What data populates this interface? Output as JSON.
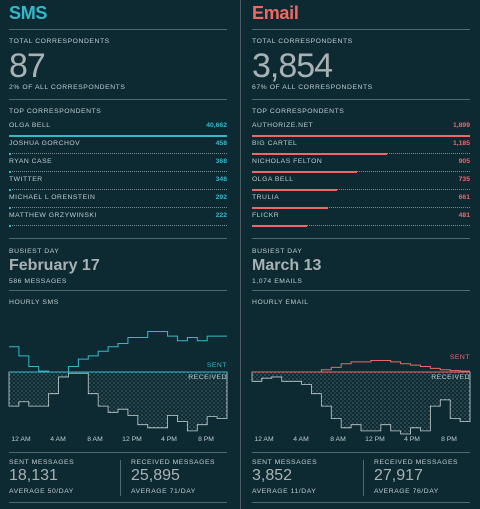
{
  "colors": {
    "background": "#0d2a33",
    "sms_accent": "#33b9cc",
    "email_accent": "#ef6863",
    "muted_text": "#a9b1b3"
  },
  "sms": {
    "title": "SMS",
    "total_label": "TOTAL CORRESPONDENTS",
    "total_value": "87",
    "total_pct": "2% OF ALL CORRESPONDENTS",
    "top_label": "TOP CORRESPONDENTS",
    "top": [
      {
        "name": "OLGA BELL",
        "value": "40,662",
        "share": 1.0
      },
      {
        "name": "JOSHUA GORCHOV",
        "value": "458",
        "share": 0.011
      },
      {
        "name": "RYAN CASE",
        "value": "368",
        "share": 0.009
      },
      {
        "name": "TWITTER",
        "value": "348",
        "share": 0.008
      },
      {
        "name": "MICHAEL L ORENSTEIN",
        "value": "292",
        "share": 0.007
      },
      {
        "name": "MATTHEW GRZYWINSKI",
        "value": "222",
        "share": 0.005
      }
    ],
    "busiest_label": "BUSIEST DAY",
    "busiest_date": "February 17",
    "busiest_count": "586 MESSAGES",
    "hourly_label": "HOURLY SMS",
    "sent_tag": "SENT",
    "received_tag": "RECEIVED",
    "x_ticks": [
      "12 AM",
      "4 AM",
      "8 AM",
      "12 PM",
      "4 PM",
      "8 PM"
    ],
    "sent_messages_label": "SENT MESSAGES",
    "sent_messages_value": "18,131",
    "sent_average": "AVERAGE 50/DAY",
    "received_messages_label": "RECEIVED MESSAGES",
    "received_messages_value": "25,895",
    "received_average": "AVERAGE 71/DAY",
    "sent_hourly": [
      0.55,
      0.35,
      0.12,
      0.02,
      0.0,
      0.0,
      0.12,
      0.28,
      0.35,
      0.45,
      0.55,
      0.62,
      0.75,
      0.75,
      0.88,
      0.88,
      0.78,
      0.68,
      0.75,
      0.68,
      0.78,
      0.78
    ],
    "received_hourly": [
      0.55,
      0.48,
      0.55,
      0.55,
      0.35,
      0.08,
      0.02,
      0.02,
      0.35,
      0.55,
      0.65,
      0.6,
      0.7,
      0.85,
      0.9,
      0.9,
      0.7,
      0.8,
      0.95,
      0.85,
      0.72,
      0.75
    ]
  },
  "email": {
    "title": "Email",
    "total_label": "TOTAL CORRESPONDENTS",
    "total_value": "3,854",
    "total_pct": "67% OF ALL CORRESPONDENTS",
    "top_label": "TOP CORRESPONDENTS",
    "top": [
      {
        "name": "AUTHORIZE.NET",
        "value": "1,899",
        "share": 1.0
      },
      {
        "name": "BIG CARTEL",
        "value": "1,185",
        "share": 0.62
      },
      {
        "name": "NICHOLAS FELTON",
        "value": "905",
        "share": 0.48
      },
      {
        "name": "OLGA BELL",
        "value": "735",
        "share": 0.39
      },
      {
        "name": "TRULIA",
        "value": "661",
        "share": 0.35
      },
      {
        "name": "FLICKR",
        "value": "481",
        "share": 0.25
      }
    ],
    "busiest_label": "BUSIEST DAY",
    "busiest_date": "March 13",
    "busiest_count": "1,074 EMAILS",
    "hourly_label": "HOURLY EMAIL",
    "sent_tag": "SENT",
    "received_tag": "RECEIVED",
    "x_ticks": [
      "12 AM",
      "4 AM",
      "8 AM",
      "12 PM",
      "4 PM",
      "8 PM"
    ],
    "sent_messages_label": "SENT MESSAGES",
    "sent_messages_value": "3,852",
    "sent_average": "AVERAGE 11/DAY",
    "received_messages_label": "RECEIVED MESSAGES",
    "received_messages_value": "27,917",
    "received_average": "AVERAGE 76/DAY",
    "sent_hourly": [
      0.0,
      0.0,
      0.0,
      0.0,
      0.0,
      0.0,
      0.0,
      0.05,
      0.1,
      0.18,
      0.22,
      0.22,
      0.25,
      0.25,
      0.22,
      0.18,
      0.15,
      0.12,
      0.08,
      0.05,
      0.03,
      0.02
    ],
    "received_hourly": [
      0.15,
      0.1,
      0.08,
      0.15,
      0.15,
      0.2,
      0.35,
      0.55,
      0.75,
      0.9,
      0.85,
      0.95,
      0.95,
      0.85,
      0.95,
      1.0,
      0.9,
      0.95,
      0.55,
      0.45,
      0.75,
      0.8
    ]
  }
}
